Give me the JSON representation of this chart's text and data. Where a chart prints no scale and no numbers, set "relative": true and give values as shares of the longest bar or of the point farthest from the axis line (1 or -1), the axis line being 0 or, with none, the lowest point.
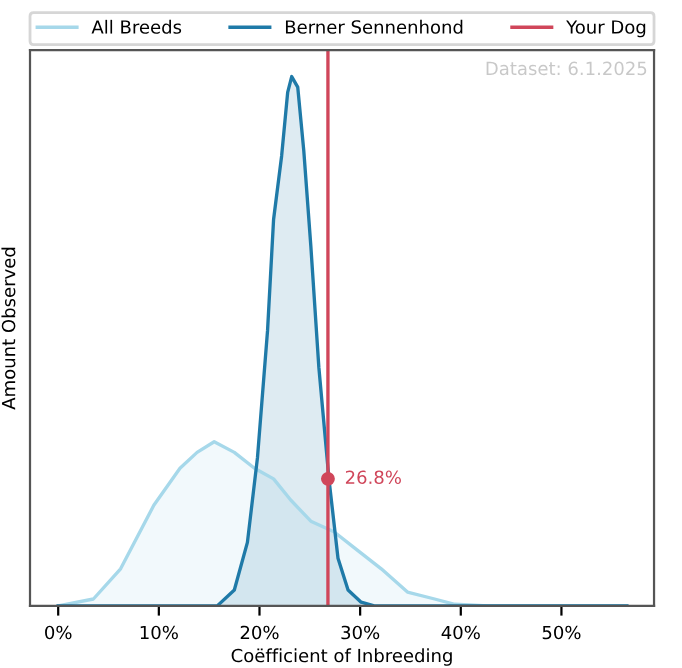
{
  "chart_data": {
    "type": "area",
    "relative": true,
    "xlabel": "Coëfficient of Inbreeding",
    "ylabel": "Amount Observed",
    "xlim": [
      -2.8,
      59.2
    ],
    "xticks": [
      {
        "value": 0,
        "label": "0%"
      },
      {
        "value": 10,
        "label": "10%"
      },
      {
        "value": 20,
        "label": "20%"
      },
      {
        "value": 30,
        "label": "30%"
      },
      {
        "value": 40,
        "label": "40%"
      },
      {
        "value": 50,
        "label": "50%"
      }
    ],
    "series": [
      {
        "name": "All Breeds",
        "color": "#a6d8ea",
        "x": [
          0,
          3.5,
          6.2,
          9.5,
          12.1,
          13.8,
          15.5,
          17.5,
          19.5,
          21.4,
          23.1,
          25.1,
          27.4,
          29.4,
          32.1,
          34.7,
          37.4,
          39.4,
          42.7,
          56.5
        ],
        "values": [
          0,
          0.013,
          0.07,
          0.19,
          0.26,
          0.29,
          0.31,
          0.29,
          0.26,
          0.24,
          0.2,
          0.16,
          0.14,
          0.11,
          0.07,
          0.026,
          0.013,
          0.003,
          0,
          0
        ]
      },
      {
        "name": "Berner Sennenhond",
        "color": "#1f7aa8",
        "x": [
          0,
          15.8,
          17.5,
          18.8,
          19.8,
          20.8,
          21.4,
          22.2,
          22.8,
          23.2,
          23.8,
          24.4,
          25.1,
          25.9,
          26.9,
          27.8,
          28.8,
          30.1,
          31.4,
          56.5
        ],
        "values": [
          0,
          0,
          0.03,
          0.12,
          0.28,
          0.52,
          0.73,
          0.85,
          0.97,
          1.0,
          0.98,
          0.86,
          0.68,
          0.45,
          0.24,
          0.09,
          0.03,
          0.007,
          0,
          0
        ]
      }
    ],
    "ref_lines": [
      {
        "axis": "x",
        "value": 26.8,
        "label": "Your Dog",
        "color": "#d0465a"
      }
    ],
    "annotations": [
      {
        "text": "26.8%",
        "x": 26.8,
        "y": 0.24
      },
      "Dataset: 6.1.2025"
    ],
    "legend": "top",
    "grid": false
  }
}
